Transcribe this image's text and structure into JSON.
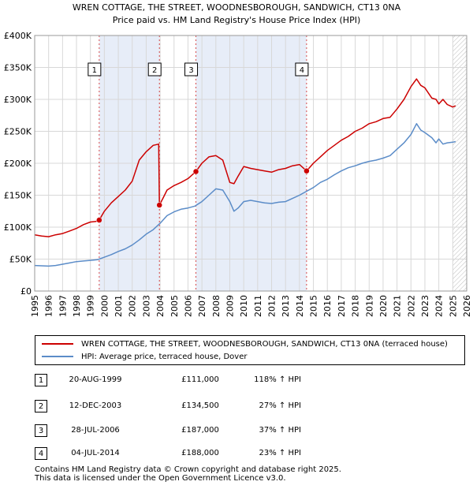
{
  "chart_data": {
    "type": "line",
    "title": "WREN COTTAGE, THE STREET, WOODNESBOROUGH, SANDWICH, CT13 0NA",
    "subtitle": "Price paid vs. HM Land Registry's House Price Index (HPI)",
    "xlabel": "",
    "ylabel": "",
    "xlim": [
      1995,
      2026
    ],
    "ylim": [
      0,
      400000
    ],
    "x_ticks": [
      1995,
      1996,
      1997,
      1998,
      1999,
      2000,
      2001,
      2002,
      2003,
      2004,
      2005,
      2006,
      2007,
      2008,
      2009,
      2010,
      2011,
      2012,
      2013,
      2014,
      2015,
      2016,
      2017,
      2018,
      2019,
      2020,
      2021,
      2022,
      2023,
      2024,
      2025,
      2026
    ],
    "y_ticks": [
      {
        "value": 0,
        "label": "£0"
      },
      {
        "value": 50000,
        "label": "£50K"
      },
      {
        "value": 100000,
        "label": "£100K"
      },
      {
        "value": 150000,
        "label": "£150K"
      },
      {
        "value": 200000,
        "label": "£200K"
      },
      {
        "value": 250000,
        "label": "£250K"
      },
      {
        "value": 300000,
        "label": "£300K"
      },
      {
        "value": 350000,
        "label": "£350K"
      },
      {
        "value": 400000,
        "label": "£400K"
      }
    ],
    "grid": true,
    "shaded_periods": [
      [
        1999.63,
        2003.95
      ],
      [
        2006.57,
        2014.51
      ]
    ],
    "future_hatch_from": 2025.0,
    "series": [
      {
        "name": "WREN COTTAGE, THE STREET, WOODNESBOROUGH, SANDWICH, CT13 0NA (terraced house)",
        "color": "#cc0000",
        "x": [
          1995.0,
          1995.5,
          1996.0,
          1996.5,
          1997.0,
          1997.5,
          1998.0,
          1998.5,
          1999.0,
          1999.4,
          1999.63,
          2000.0,
          2000.5,
          2001.0,
          2001.5,
          2002.0,
          2002.5,
          2003.0,
          2003.5,
          2003.9,
          2003.95,
          2004.2,
          2004.5,
          2005.0,
          2005.5,
          2006.0,
          2006.57,
          2007.0,
          2007.5,
          2008.0,
          2008.5,
          2009.0,
          2009.3,
          2009.6,
          2010.0,
          2010.5,
          2011.0,
          2011.5,
          2012.0,
          2012.5,
          2013.0,
          2013.5,
          2014.0,
          2014.51,
          2015.0,
          2015.5,
          2016.0,
          2016.5,
          2017.0,
          2017.5,
          2018.0,
          2018.5,
          2019.0,
          2019.5,
          2020.0,
          2020.5,
          2021.0,
          2021.5,
          2022.0,
          2022.4,
          2022.7,
          2023.0,
          2023.5,
          2023.8,
          2024.0,
          2024.3,
          2024.6,
          2025.0,
          2025.2
        ],
        "values": [
          88000,
          86000,
          85000,
          88000,
          90000,
          94000,
          98000,
          104000,
          108000,
          109000,
          111000,
          125000,
          138000,
          148000,
          158000,
          172000,
          205000,
          218000,
          228000,
          230000,
          134500,
          145000,
          158000,
          165000,
          170000,
          176000,
          187000,
          200000,
          210000,
          212000,
          205000,
          170000,
          168000,
          180000,
          195000,
          192000,
          190000,
          188000,
          186000,
          190000,
          192000,
          196000,
          198000,
          188000,
          200000,
          210000,
          220000,
          228000,
          236000,
          242000,
          250000,
          255000,
          262000,
          265000,
          270000,
          272000,
          285000,
          300000,
          320000,
          332000,
          322000,
          318000,
          302000,
          300000,
          293000,
          300000,
          292000,
          288000,
          290000
        ]
      },
      {
        "name": "HPI: Average price, terraced house, Dover",
        "color": "#5b8cc8",
        "x": [
          1995.0,
          1995.5,
          1996.0,
          1996.5,
          1997.0,
          1997.5,
          1998.0,
          1998.5,
          1999.0,
          1999.5,
          2000.0,
          2000.5,
          2001.0,
          2001.5,
          2002.0,
          2002.5,
          2003.0,
          2003.5,
          2004.0,
          2004.5,
          2005.0,
          2005.5,
          2006.0,
          2006.5,
          2007.0,
          2007.5,
          2008.0,
          2008.5,
          2009.0,
          2009.3,
          2009.6,
          2010.0,
          2010.5,
          2011.0,
          2011.5,
          2012.0,
          2012.5,
          2013.0,
          2013.5,
          2014.0,
          2014.5,
          2015.0,
          2015.5,
          2016.0,
          2016.5,
          2017.0,
          2017.5,
          2018.0,
          2018.5,
          2019.0,
          2019.5,
          2020.0,
          2020.5,
          2021.0,
          2021.5,
          2022.0,
          2022.4,
          2022.7,
          2023.0,
          2023.5,
          2023.8,
          2024.0,
          2024.3,
          2024.6,
          2025.0,
          2025.2
        ],
        "values": [
          40000,
          39500,
          39000,
          40000,
          42000,
          44000,
          46000,
          47000,
          48000,
          49000,
          53000,
          57000,
          62000,
          66000,
          72000,
          80000,
          89000,
          96000,
          106000,
          118000,
          124000,
          128000,
          130000,
          133000,
          140000,
          150000,
          160000,
          158000,
          140000,
          125000,
          130000,
          140000,
          142000,
          140000,
          138000,
          137000,
          139000,
          140000,
          145000,
          150000,
          156000,
          162000,
          170000,
          175000,
          182000,
          188000,
          193000,
          196000,
          200000,
          203000,
          205000,
          208000,
          212000,
          222000,
          232000,
          245000,
          262000,
          252000,
          248000,
          240000,
          232000,
          238000,
          230000,
          232000,
          233000,
          234000
        ]
      }
    ],
    "markers": [
      {
        "label": "1",
        "x": 1999.63,
        "y": 111000
      },
      {
        "label": "2",
        "x": 2003.95,
        "y": 134500
      },
      {
        "label": "3",
        "x": 2006.57,
        "y": 187000
      },
      {
        "label": "4",
        "x": 2014.51,
        "y": 188000
      }
    ]
  },
  "legend": {
    "property_label": "WREN COTTAGE, THE STREET, WOODNESBOROUGH, SANDWICH, CT13 0NA (terraced house)",
    "hpi_label": "HPI: Average price, terraced house, Dover"
  },
  "transactions": [
    {
      "num": "1",
      "date": "20-AUG-1999",
      "price": "£111,000",
      "hpi": "118% ↑ HPI"
    },
    {
      "num": "2",
      "date": "12-DEC-2003",
      "price": "£134,500",
      "hpi": "27% ↑ HPI"
    },
    {
      "num": "3",
      "date": "28-JUL-2006",
      "price": "£187,000",
      "hpi": "37% ↑ HPI"
    },
    {
      "num": "4",
      "date": "04-JUL-2014",
      "price": "£188,000",
      "hpi": "23% ↑ HPI"
    }
  ],
  "footer": {
    "line1": "Contains HM Land Registry data © Crown copyright and database right 2025.",
    "line2": "This data is licensed under the Open Government Licence v3.0."
  }
}
